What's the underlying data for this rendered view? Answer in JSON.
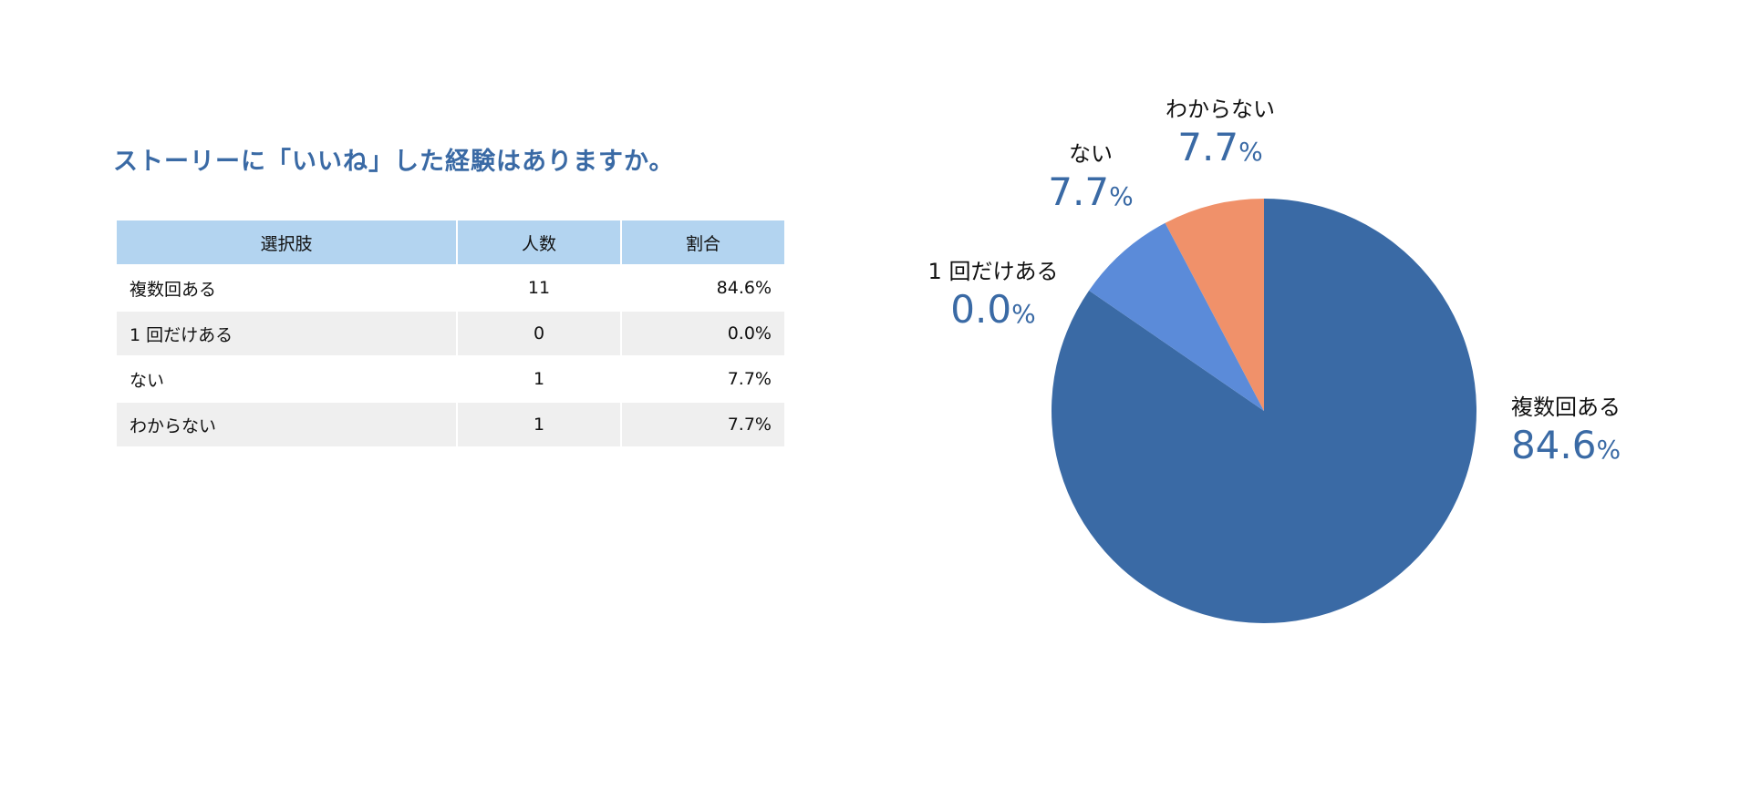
{
  "title": "ストーリーに「いいね」した経験はありますか。",
  "table": {
    "header": [
      "選択肢",
      "人数",
      "割合"
    ],
    "rows": [
      [
        "複数回ある",
        "11",
        "84.6%"
      ],
      [
        "1 回だけある",
        "0",
        "0.0%"
      ],
      [
        "ない",
        "1",
        "7.7%"
      ],
      [
        "わからない",
        "1",
        "7.7%"
      ]
    ]
  },
  "chart_data": {
    "type": "pie",
    "categories": [
      "複数回ある",
      "1 回だけある",
      "ない",
      "わからない"
    ],
    "values": [
      84.6,
      0.0,
      7.7,
      7.7
    ],
    "value_labels": [
      "84.6%",
      "0.0%",
      "7.7%",
      "7.7%"
    ],
    "colors": [
      "#3a6aa5",
      "#7fa7e0",
      "#5b8bd9",
      "#f0916a"
    ]
  }
}
